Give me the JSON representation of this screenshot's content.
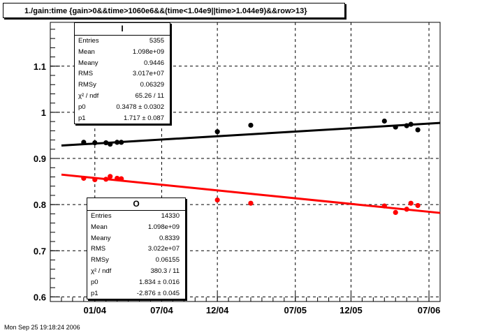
{
  "title": "1./gain:time {gain>0&&time>1060e6&&(time<1.04e9||time>1.044e9)&&row>13}",
  "footer": "Mon Sep 25 19:18:24 2006",
  "stats_I": {
    "name": "I",
    "rows": [
      {
        "k": "Entries",
        "v": "5355"
      },
      {
        "k": "Mean",
        "v": "1.098e+09"
      },
      {
        "k": "Meany",
        "v": "0.9446"
      },
      {
        "k": "RMS",
        "v": "3.017e+07"
      },
      {
        "k": "RMSy",
        "v": "0.06329"
      },
      {
        "k": "χ² / ndf",
        "v": "65.26 / 11"
      },
      {
        "k": "p0",
        "v": "0.3478 ± 0.0302"
      },
      {
        "k": "p1",
        "v": "1.717 ± 0.087"
      }
    ]
  },
  "stats_O": {
    "name": "O",
    "rows": [
      {
        "k": "Entries",
        "v": "14330"
      },
      {
        "k": "Mean",
        "v": "1.098e+09"
      },
      {
        "k": "Meany",
        "v": "0.8339"
      },
      {
        "k": "RMS",
        "v": "3.022e+07"
      },
      {
        "k": "RMSy",
        "v": "0.06155"
      },
      {
        "k": "χ² / ndf",
        "v": "380.3 / 11"
      },
      {
        "k": "p0",
        "v": "1.834 ± 0.016"
      },
      {
        "k": "p1",
        "v": "-2.876 ± 0.045"
      }
    ]
  },
  "chart_data": {
    "type": "scatter",
    "title": "1./gain:time {gain>0&&time>1060e6&&(time<1.04e9||time>1.044e9)&&row>13}",
    "xlabel": "",
    "ylabel": "",
    "x_tick_labels": [
      "01/04",
      "07/04",
      "12/04",
      "07/05",
      "12/05",
      "07/06"
    ],
    "y_tick_labels": [
      "0.6",
      "0.7",
      "0.8",
      "0.9",
      "1",
      "1.1"
    ],
    "ylim": [
      0.59,
      1.195
    ],
    "grid": true,
    "series": [
      {
        "name": "I",
        "color": "#000000",
        "points": [
          {
            "x": "12/03",
            "y": 0.935
          },
          {
            "x": "01/04",
            "y": 0.934
          },
          {
            "x": "02/04",
            "y": 0.934
          },
          {
            "x": "02/04",
            "y": 0.931
          },
          {
            "x": "03/04",
            "y": 0.935
          },
          {
            "x": "03/04",
            "y": 0.935
          },
          {
            "x": "12/04",
            "y": 0.958
          },
          {
            "x": "03/05",
            "y": 0.972
          },
          {
            "x": "03/06",
            "y": 0.981
          },
          {
            "x": "04/06",
            "y": 0.968
          },
          {
            "x": "05/06",
            "y": 0.971
          },
          {
            "x": "05/06",
            "y": 0.974
          },
          {
            "x": "06/06",
            "y": 0.962
          }
        ],
        "fit": {
          "start": {
            "x": "10/03",
            "y": 0.928
          },
          "end": {
            "x": "08/06",
            "y": 0.977
          }
        }
      },
      {
        "name": "O",
        "color": "#ff0000",
        "points": [
          {
            "x": "12/03",
            "y": 0.857
          },
          {
            "x": "01/04",
            "y": 0.854
          },
          {
            "x": "02/04",
            "y": 0.855
          },
          {
            "x": "02/04",
            "y": 0.861
          },
          {
            "x": "03/04",
            "y": 0.857
          },
          {
            "x": "03/04",
            "y": 0.856
          },
          {
            "x": "12/04",
            "y": 0.81
          },
          {
            "x": "03/05",
            "y": 0.803
          },
          {
            "x": "03/06",
            "y": 0.797
          },
          {
            "x": "04/06",
            "y": 0.783
          },
          {
            "x": "05/06",
            "y": 0.79
          },
          {
            "x": "05/06",
            "y": 0.803
          },
          {
            "x": "06/06",
            "y": 0.798
          }
        ],
        "fit": {
          "start": {
            "x": "10/03",
            "y": 0.865
          },
          "end": {
            "x": "08/06",
            "y": 0.782
          }
        }
      }
    ]
  }
}
